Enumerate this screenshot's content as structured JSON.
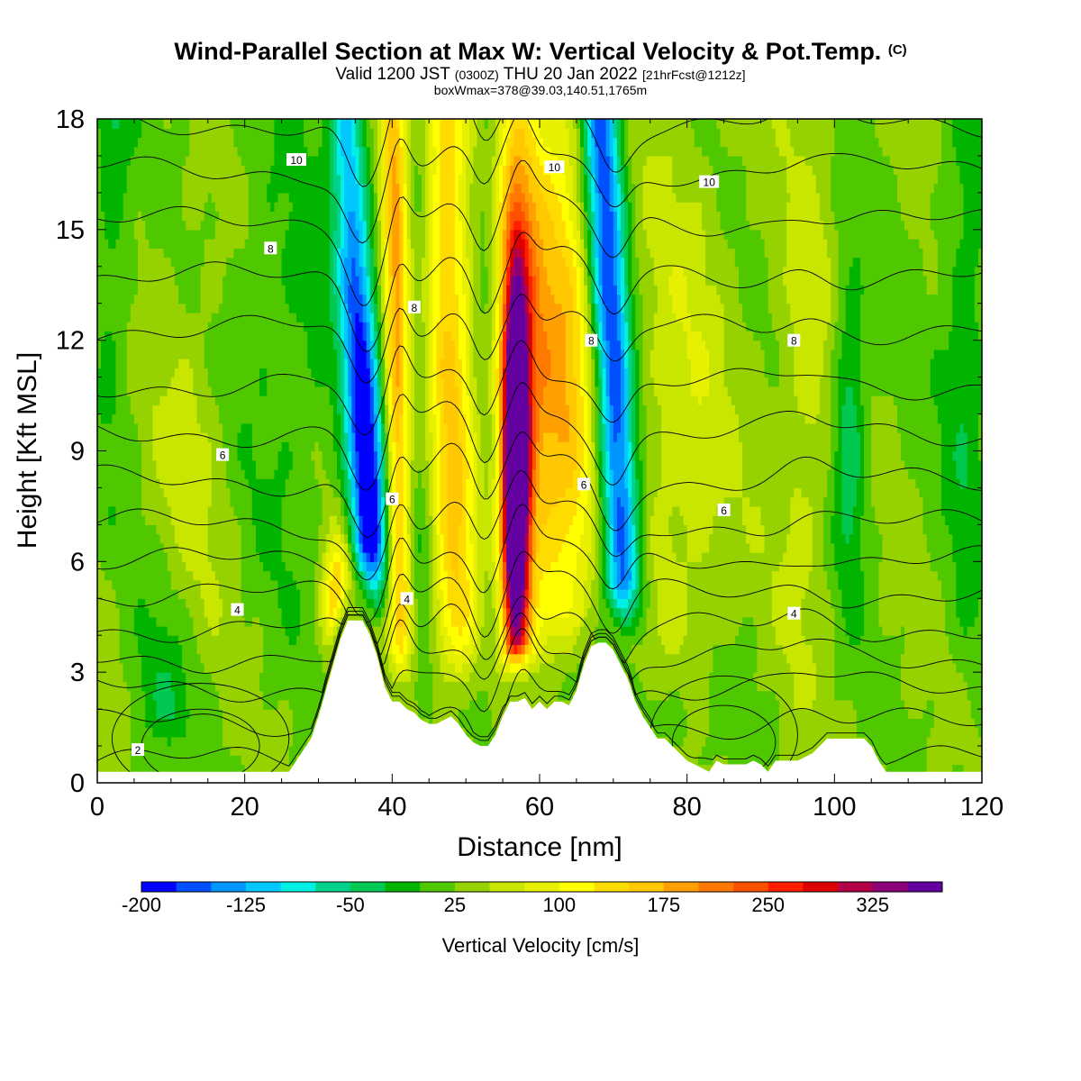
{
  "title": {
    "main": "Wind-Parallel Section at Max W: Vertical Velocity & Pot.Temp.",
    "copyright_mark": "(C)",
    "valid_prefix": "Valid 1200 JST",
    "valid_utc": "(0300Z)",
    "valid_date": "THU 20 Jan 2022",
    "forecast": "[21hrFcst@1212z]",
    "box_info": "boxWmax=378@39.03,140.51,1765m"
  },
  "chart_data": {
    "type": "heatmap",
    "xlabel": "Distance [nm]",
    "ylabel": "Height [Kft MSL]",
    "xlim": [
      0,
      120
    ],
    "ylim": [
      0,
      18
    ],
    "x_ticks": [
      0,
      20,
      40,
      60,
      80,
      100,
      120
    ],
    "y_ticks": [
      0,
      3,
      6,
      9,
      12,
      15,
      18
    ],
    "colorbar": {
      "label": "Vertical Velocity [cm/s]",
      "min": -200,
      "max": 350,
      "step": 25,
      "tick_labels": [
        "-200",
        "-125",
        "-50",
        "25",
        "100",
        "175",
        "250",
        "325"
      ],
      "tick_values": [
        -200,
        -125,
        -50,
        25,
        100,
        175,
        250,
        325
      ],
      "colors": [
        "#0000ff",
        "#0050ff",
        "#0096ff",
        "#00c8ff",
        "#00f0e6",
        "#00d28c",
        "#00c850",
        "#00b400",
        "#50c800",
        "#96d200",
        "#c8e600",
        "#e6f000",
        "#ffff00",
        "#ffdc00",
        "#ffc800",
        "#ffa000",
        "#ff7800",
        "#ff5000",
        "#ff1e00",
        "#dc0000",
        "#b40046",
        "#8c0078",
        "#6400a0"
      ]
    },
    "bands": [
      {
        "x_center": 37,
        "w_min": -200,
        "note": "downdraft"
      },
      {
        "x_center": 40.5,
        "w_min": 100
      },
      {
        "x_center": 48,
        "w_min": 100
      },
      {
        "x_center": 57,
        "w_max": 378
      },
      {
        "x_center": 63,
        "w_max": 150
      },
      {
        "x_center": 70,
        "w_min": -125
      },
      {
        "x_center": 76,
        "w_max": 75
      },
      {
        "x_center": 92,
        "w_max": 50
      },
      {
        "x_center": 102,
        "w_min": -75
      }
    ],
    "terrain": {
      "x": [
        0,
        26,
        27,
        28,
        29,
        30,
        31,
        32,
        33,
        34,
        35,
        36,
        37,
        38,
        39,
        40,
        41,
        42,
        43,
        44,
        45,
        46,
        47,
        48,
        49,
        50,
        51,
        52,
        53,
        54,
        55,
        56,
        57,
        58,
        59,
        60,
        61,
        62,
        63,
        64,
        65,
        66,
        67,
        68,
        69,
        70,
        71,
        72,
        73,
        74,
        75,
        76,
        77,
        78,
        79,
        80,
        81,
        82,
        83,
        84,
        85,
        86,
        87,
        88,
        89,
        90,
        91,
        92,
        93,
        94,
        95,
        96,
        97,
        98,
        99,
        100,
        101,
        102,
        103,
        104,
        105,
        106,
        107,
        108,
        120
      ],
      "height": [
        0.3,
        0.3,
        0.6,
        0.9,
        1.2,
        1.8,
        2.5,
        3.2,
        3.9,
        4.4,
        4.4,
        4.4,
        4.0,
        3.4,
        2.6,
        2.2,
        2.2,
        2.0,
        1.9,
        1.7,
        1.6,
        1.6,
        1.7,
        1.8,
        1.6,
        1.3,
        1.1,
        1.0,
        1.0,
        1.3,
        1.8,
        2.2,
        2.2,
        2.3,
        2.0,
        2.2,
        2.0,
        2.2,
        2.2,
        2.1,
        2.5,
        3.2,
        3.7,
        3.8,
        3.8,
        3.6,
        3.2,
        2.8,
        2.2,
        1.8,
        1.5,
        1.2,
        1.2,
        1.0,
        0.8,
        0.6,
        0.5,
        0.4,
        0.3,
        0.6,
        0.5,
        0.5,
        0.5,
        0.5,
        0.6,
        0.5,
        0.3,
        0.6,
        0.6,
        0.6,
        0.6,
        0.7,
        0.8,
        1.0,
        1.2,
        1.2,
        1.2,
        1.2,
        1.2,
        1.2,
        1.0,
        0.6,
        0.3,
        0.3,
        0.3
      ]
    },
    "contour_labels": [
      {
        "text": "2",
        "x": 5.5,
        "y": 0.9
      },
      {
        "text": "4",
        "x": 19,
        "y": 4.7
      },
      {
        "text": "4",
        "x": 42,
        "y": 5.0
      },
      {
        "text": "4",
        "x": 94.5,
        "y": 4.6
      },
      {
        "text": "6",
        "x": 17,
        "y": 8.9
      },
      {
        "text": "6",
        "x": 40,
        "y": 7.7
      },
      {
        "text": "6",
        "x": 66,
        "y": 8.1
      },
      {
        "text": "6",
        "x": 85,
        "y": 7.4
      },
      {
        "text": "8",
        "x": 23.5,
        "y": 14.5
      },
      {
        "text": "8",
        "x": 43,
        "y": 12.9
      },
      {
        "text": "8",
        "x": 67,
        "y": 12.0
      },
      {
        "text": "8",
        "x": 94.5,
        "y": 12.0
      },
      {
        "text": "10",
        "x": 27,
        "y": 16.9
      },
      {
        "text": "10",
        "x": 62,
        "y": 16.7
      },
      {
        "text": "10",
        "x": 83,
        "y": 16.3
      }
    ]
  }
}
